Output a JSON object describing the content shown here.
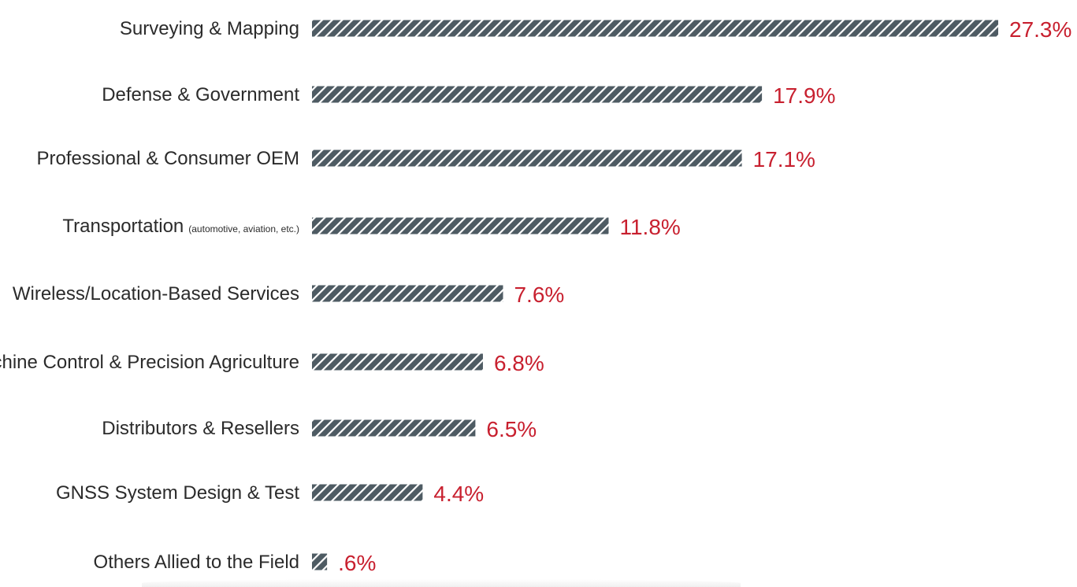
{
  "colors": {
    "bar": "#4e5b63",
    "hatch": "#ffffff",
    "value_text": "#c8202f",
    "label_text": "#2b2b2b"
  },
  "chart_data": {
    "type": "bar",
    "orientation": "horizontal",
    "title": "",
    "xlabel": "",
    "ylabel": "",
    "grid": false,
    "xlim": [
      0,
      27.3
    ],
    "categories": [
      "Surveying & Mapping",
      "Defense & Government",
      "Professional & Consumer OEM",
      "Transportation",
      "Wireless/Location-Based Services",
      "Machine Control & Precision Agriculture",
      "Distributors & Resellers",
      "GNSS System Design & Test",
      "Others Allied to the Field"
    ],
    "category_notes": [
      "",
      "",
      "",
      "(automotive, aviation, etc.)",
      "",
      "",
      "",
      "",
      ""
    ],
    "values": [
      27.3,
      17.9,
      17.1,
      11.8,
      7.6,
      6.8,
      6.5,
      4.4,
      0.6
    ],
    "value_labels": [
      "27.3%",
      "17.9%",
      "17.1%",
      "11.8%",
      "7.6%",
      "6.8%",
      "6.5%",
      "4.4%",
      ".6%"
    ]
  }
}
